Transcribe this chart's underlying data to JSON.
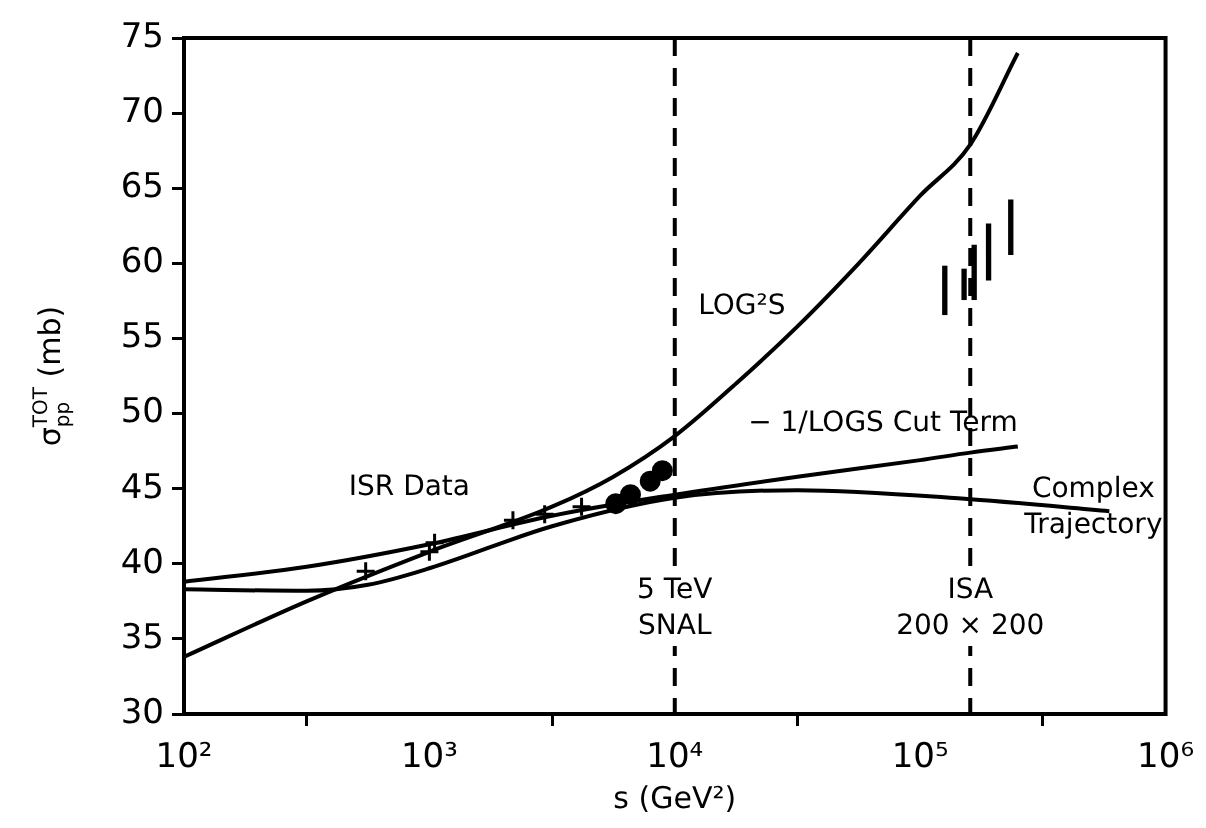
{
  "chart_data": {
    "type": "line",
    "xlabel": "s (GeV²)",
    "ylabel": "σ$^{TOT}$$_{pp}$ (mb)",
    "log": "x",
    "xlim": [
      100,
      1000000
    ],
    "xticks": [
      {
        "value": 100,
        "label": "10²"
      },
      {
        "value": 1000,
        "label": "10³"
      },
      {
        "value": 10000,
        "label": "10⁴"
      },
      {
        "value": 100000,
        "label": "10⁵"
      },
      {
        "value": 1000000,
        "label": "10⁶"
      }
    ],
    "ylim": [
      30,
      75
    ],
    "yticks": [
      30,
      35,
      40,
      45,
      50,
      55,
      60,
      65,
      70,
      75
    ],
    "grid": false,
    "legend": false,
    "series": [
      {
        "name": "LOG²S",
        "color": "#000000",
        "marker": "none",
        "x": [
          100,
          316,
          1000,
          3162,
          5623,
          10000,
          17783,
          31623,
          56234,
          100000,
          160000,
          250000
        ],
        "values": [
          33.8,
          37.5,
          40.8,
          43.8,
          45.8,
          48.5,
          52,
          55.8,
          60,
          64.5,
          67.9,
          74
        ]
      },
      {
        "name": "− 1/LOGS Cut Term",
        "color": "#000000",
        "marker": "none",
        "x": [
          100,
          316,
          1000,
          3162,
          10000,
          31623,
          100000,
          160000,
          250000
        ],
        "values": [
          38.8,
          39.8,
          41.3,
          43.2,
          44.6,
          45.8,
          46.9,
          47.4,
          47.8
        ]
      },
      {
        "name": "Complex Trajectory",
        "color": "#000000",
        "marker": "none",
        "x": [
          100,
          316,
          562,
          1000,
          3162,
          10000,
          31623,
          160000,
          590000
        ],
        "values": [
          38.3,
          38.2,
          38.6,
          39.7,
          42.5,
          44.4,
          44.9,
          44.3,
          43.5
        ]
      },
      {
        "type": "scatter",
        "color": "#000000",
        "marker": "cross",
        "x": [
          550,
          1000,
          1050,
          2190,
          2950,
          4170
        ],
        "values": [
          39.5,
          40.8,
          41.4,
          42.9,
          43.3,
          43.8
        ]
      },
      {
        "type": "scatter",
        "color": "#000000",
        "marker": "circle",
        "x": [
          5750,
          6600,
          7940,
          8900
        ],
        "values": [
          44.0,
          44.6,
          45.5,
          46.2
        ]
      },
      {
        "type": "bar",
        "color": "#000000",
        "x": [
          126000,
          151000,
          166000,
          190000,
          234000
        ],
        "base": [
          56.6,
          57.6,
          57.6,
          58.9,
          60.6
        ],
        "values": [
          3.2,
          2.0,
          3.6,
          3.7,
          3.6
        ]
      }
    ],
    "ref_lines": [
      {
        "axis": "x",
        "value": 10000,
        "label": "5 TeV\nSNAL",
        "line_style": "dashed",
        "color": "#000000"
      },
      {
        "axis": "x",
        "value": 160000,
        "label": "ISA\n200 × 200",
        "line_style": "dashed",
        "color": "#000000"
      }
    ],
    "annotations": [
      {
        "text": "ISR Data",
        "x": 1000,
        "y": 41.4
      }
    ]
  }
}
